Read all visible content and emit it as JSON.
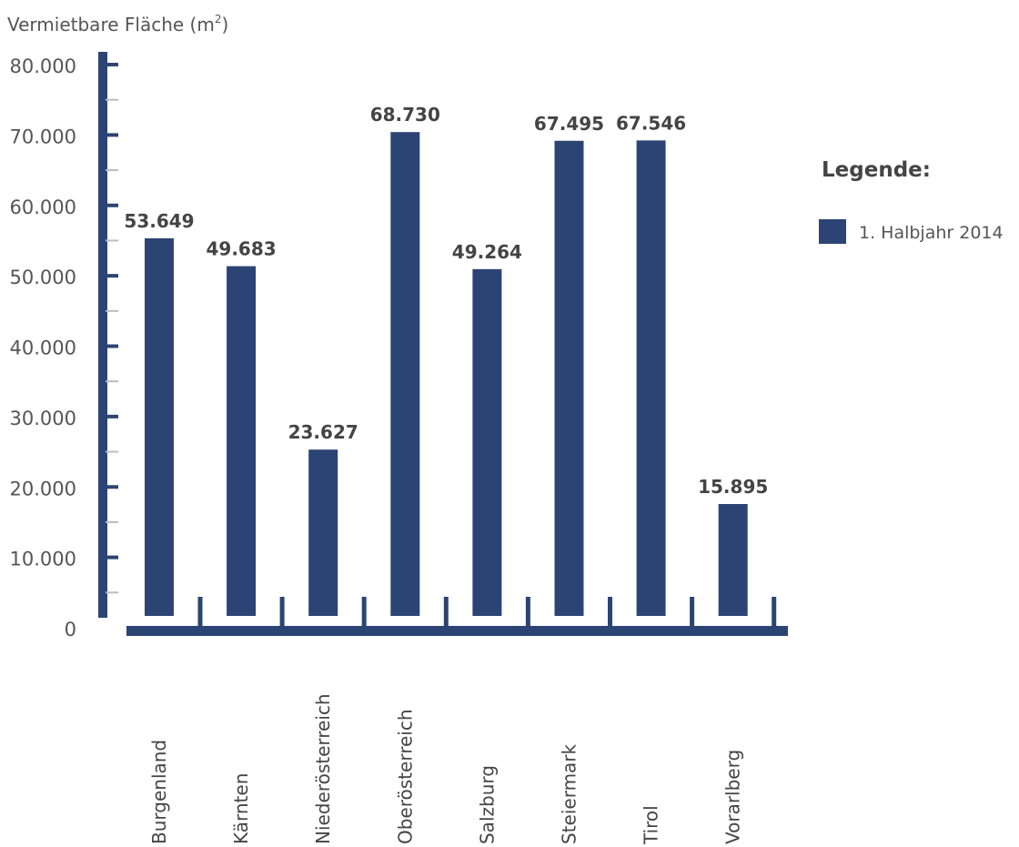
{
  "chart_data": {
    "type": "bar",
    "ylabel": "Vermietbare Fläche (m",
    "ylabel_sup": "2",
    "ylabel_end": ")",
    "categories": [
      "Burgenland",
      "Kärnten",
      "Niederösterreich",
      "Oberösterreich",
      "Salzburg",
      "Steiermark",
      "Tirol",
      "Vorarlberg"
    ],
    "series": [
      {
        "name": "1. Halbjahr 2014",
        "values": [
          53649,
          49683,
          23627,
          68730,
          49264,
          67495,
          67546,
          15895
        ],
        "labels": [
          "53.649",
          "49.683",
          "23.627",
          "68.730",
          "49.264",
          "67.495",
          "67.546",
          "15.895"
        ]
      }
    ],
    "ylim": [
      0,
      80000
    ],
    "yticks": [
      80000,
      70000,
      60000,
      50000,
      40000,
      30000,
      20000,
      10000,
      0
    ],
    "ytick_labels": [
      "80.000",
      "70.000",
      "60.000",
      "50.000",
      "40.000",
      "30.000",
      "20.000",
      "10.000",
      "0"
    ],
    "grid": false,
    "legend": {
      "title": "Legende:",
      "position": "right"
    },
    "colors": {
      "bar": "#2c4474",
      "axis": "#2c4474",
      "minor_tick": "#b8bcc6"
    }
  }
}
